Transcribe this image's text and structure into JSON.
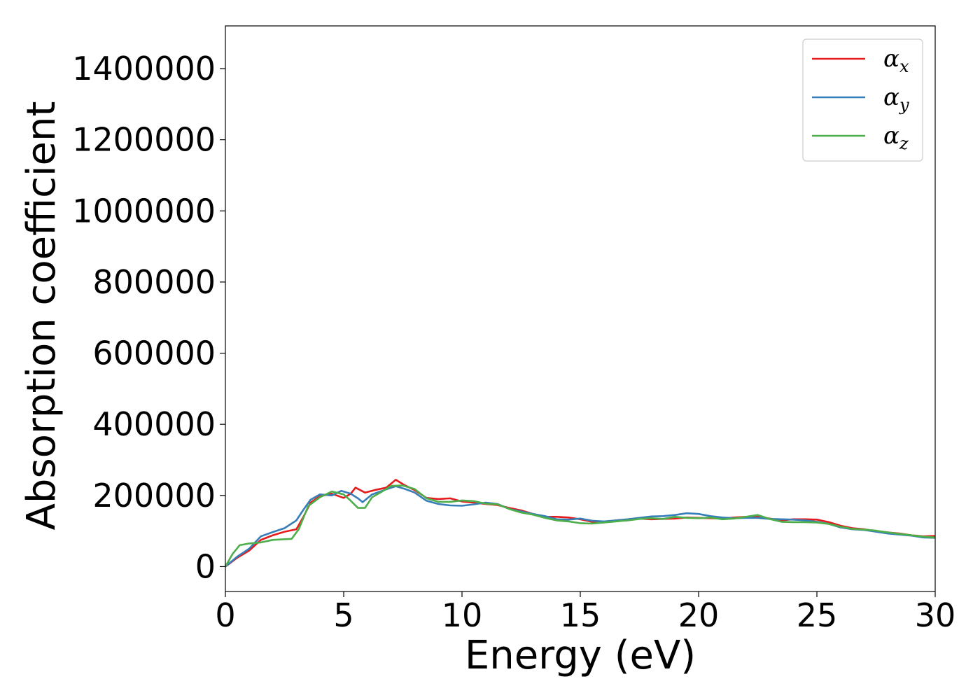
{
  "chart_data": {
    "type": "line",
    "title": "",
    "xlabel": "Energy (eV)",
    "ylabel": "Absorption coefficient",
    "xlim": [
      0,
      30
    ],
    "ylim": [
      -70000,
      1520000
    ],
    "x_ticks": [
      "0",
      "5",
      "10",
      "15",
      "20",
      "25",
      "30"
    ],
    "y_ticks": [
      "0",
      "200000",
      "400000",
      "600000",
      "800000",
      "1000000",
      "1200000",
      "1400000"
    ],
    "grid": false,
    "legend_position": "top-right",
    "series": [
      {
        "name": "α",
        "subscript": "x",
        "color": "#e41a1c",
        "points": [
          [
            0,
            0
          ],
          [
            0.5,
            25000
          ],
          [
            1,
            45000
          ],
          [
            1.5,
            75000
          ],
          [
            2,
            88000
          ],
          [
            2.5,
            98000
          ],
          [
            3,
            105000
          ],
          [
            3.3,
            140000
          ],
          [
            3.6,
            180000
          ],
          [
            4,
            198000
          ],
          [
            4.5,
            205000
          ],
          [
            5,
            193000
          ],
          [
            5.3,
            205000
          ],
          [
            5.5,
            222000
          ],
          [
            5.9,
            208000
          ],
          [
            6.3,
            215000
          ],
          [
            6.8,
            222000
          ],
          [
            7.2,
            244000
          ],
          [
            7.6,
            228000
          ],
          [
            8,
            215000
          ],
          [
            8.5,
            193000
          ],
          [
            9,
            190000
          ],
          [
            9.5,
            192000
          ],
          [
            10,
            183000
          ],
          [
            10.5,
            180000
          ],
          [
            11,
            176000
          ],
          [
            11.5,
            173000
          ],
          [
            12,
            165000
          ],
          [
            12.5,
            158000
          ],
          [
            13,
            148000
          ],
          [
            13.5,
            140000
          ],
          [
            14,
            140000
          ],
          [
            14.5,
            138000
          ],
          [
            15,
            133000
          ],
          [
            15.5,
            126000
          ],
          [
            16,
            124000
          ],
          [
            16.5,
            130000
          ],
          [
            17,
            132000
          ],
          [
            17.5,
            135000
          ],
          [
            18,
            133000
          ],
          [
            18.5,
            134000
          ],
          [
            19,
            135000
          ],
          [
            19.5,
            138000
          ],
          [
            20,
            137000
          ],
          [
            20.5,
            136000
          ],
          [
            21,
            135000
          ],
          [
            21.5,
            138000
          ],
          [
            22,
            140000
          ],
          [
            22.5,
            140000
          ],
          [
            23,
            135000
          ],
          [
            23.5,
            130000
          ],
          [
            24,
            133000
          ],
          [
            24.5,
            133000
          ],
          [
            25,
            132000
          ],
          [
            25.5,
            125000
          ],
          [
            26,
            115000
          ],
          [
            26.5,
            108000
          ],
          [
            27,
            105000
          ],
          [
            27.5,
            100000
          ],
          [
            28,
            96000
          ],
          [
            28.5,
            93000
          ],
          [
            29,
            88000
          ],
          [
            29.5,
            85000
          ],
          [
            30,
            86000
          ]
        ]
      },
      {
        "name": "α",
        "subscript": "y",
        "color": "#377eb8",
        "points": [
          [
            0,
            0
          ],
          [
            0.5,
            28000
          ],
          [
            1,
            50000
          ],
          [
            1.5,
            85000
          ],
          [
            2,
            97000
          ],
          [
            2.5,
            108000
          ],
          [
            3,
            130000
          ],
          [
            3.3,
            160000
          ],
          [
            3.6,
            188000
          ],
          [
            4,
            203000
          ],
          [
            4.5,
            200000
          ],
          [
            4.9,
            213000
          ],
          [
            5.3,
            205000
          ],
          [
            5.6,
            192000
          ],
          [
            5.8,
            181000
          ],
          [
            6.2,
            203000
          ],
          [
            6.7,
            215000
          ],
          [
            7.2,
            226000
          ],
          [
            7.6,
            218000
          ],
          [
            8,
            208000
          ],
          [
            8.5,
            185000
          ],
          [
            9,
            176000
          ],
          [
            9.5,
            172000
          ],
          [
            10,
            171000
          ],
          [
            10.5,
            175000
          ],
          [
            11,
            180000
          ],
          [
            11.5,
            176000
          ],
          [
            12,
            162000
          ],
          [
            12.5,
            155000
          ],
          [
            13,
            148000
          ],
          [
            13.5,
            142000
          ],
          [
            14,
            133000
          ],
          [
            14.5,
            132000
          ],
          [
            15,
            135000
          ],
          [
            15.5,
            129000
          ],
          [
            16,
            127000
          ],
          [
            16.5,
            130000
          ],
          [
            17,
            133000
          ],
          [
            17.5,
            137000
          ],
          [
            18,
            141000
          ],
          [
            18.5,
            142000
          ],
          [
            19,
            145000
          ],
          [
            19.5,
            150000
          ],
          [
            20,
            148000
          ],
          [
            20.5,
            142000
          ],
          [
            21,
            138000
          ],
          [
            21.5,
            136000
          ],
          [
            22,
            137000
          ],
          [
            22.5,
            137000
          ],
          [
            23,
            134000
          ],
          [
            23.5,
            133000
          ],
          [
            24,
            132000
          ],
          [
            24.5,
            130000
          ],
          [
            25,
            126000
          ],
          [
            25.5,
            120000
          ],
          [
            26,
            110000
          ],
          [
            26.5,
            105000
          ],
          [
            27,
            103000
          ],
          [
            27.5,
            98000
          ],
          [
            28,
            93000
          ],
          [
            28.5,
            90000
          ],
          [
            29,
            87000
          ],
          [
            29.5,
            82000
          ],
          [
            30,
            81000
          ]
        ]
      },
      {
        "name": "α",
        "subscript": "z",
        "color": "#4daf4a",
        "points": [
          [
            0,
            0
          ],
          [
            0.3,
            35000
          ],
          [
            0.6,
            60000
          ],
          [
            1,
            65000
          ],
          [
            1.5,
            68000
          ],
          [
            2,
            75000
          ],
          [
            2.5,
            77000
          ],
          [
            2.8,
            78000
          ],
          [
            3.1,
            105000
          ],
          [
            3.5,
            170000
          ],
          [
            4,
            195000
          ],
          [
            4.5,
            211000
          ],
          [
            5,
            203000
          ],
          [
            5.3,
            185000
          ],
          [
            5.6,
            165000
          ],
          [
            5.9,
            165000
          ],
          [
            6.2,
            195000
          ],
          [
            6.6,
            210000
          ],
          [
            7,
            227000
          ],
          [
            7.5,
            228000
          ],
          [
            8,
            218000
          ],
          [
            8.5,
            192000
          ],
          [
            9,
            182000
          ],
          [
            9.5,
            182000
          ],
          [
            10,
            186000
          ],
          [
            10.5,
            184000
          ],
          [
            11,
            177000
          ],
          [
            11.5,
            175000
          ],
          [
            12,
            162000
          ],
          [
            12.5,
            152000
          ],
          [
            13,
            146000
          ],
          [
            13.5,
            137000
          ],
          [
            14,
            130000
          ],
          [
            14.5,
            127000
          ],
          [
            15,
            122000
          ],
          [
            15.5,
            121000
          ],
          [
            16,
            124000
          ],
          [
            16.5,
            127000
          ],
          [
            17,
            130000
          ],
          [
            17.5,
            134000
          ],
          [
            18,
            136000
          ],
          [
            18.5,
            134000
          ],
          [
            19,
            140000
          ],
          [
            19.5,
            137000
          ],
          [
            20,
            136000
          ],
          [
            20.5,
            138000
          ],
          [
            21,
            133000
          ],
          [
            21.5,
            135000
          ],
          [
            22,
            140000
          ],
          [
            22.5,
            145000
          ],
          [
            23,
            134000
          ],
          [
            23.5,
            126000
          ],
          [
            24,
            125000
          ],
          [
            24.5,
            125000
          ],
          [
            25,
            124000
          ],
          [
            25.5,
            120000
          ],
          [
            26,
            112000
          ],
          [
            26.5,
            106000
          ],
          [
            27,
            104000
          ],
          [
            27.5,
            101000
          ],
          [
            28,
            96000
          ],
          [
            28.5,
            92000
          ],
          [
            29,
            88000
          ],
          [
            29.5,
            84000
          ],
          [
            30,
            82000
          ]
        ]
      }
    ]
  }
}
